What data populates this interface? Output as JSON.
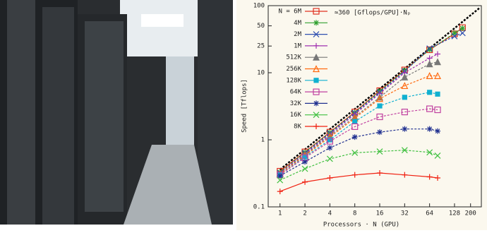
{
  "chart_data": {
    "type": "line",
    "log_x": true,
    "log_y": true,
    "x_label": "Processors · N (GPU)",
    "y_label": "Speed [Tflops]",
    "annotation": "≈360 [Gflops/GPU]·Nₚ",
    "xlim": [
      0.72,
      270
    ],
    "ylim": [
      0.1,
      100
    ],
    "xticks": [
      1,
      2,
      4,
      8,
      16,
      32,
      64,
      128,
      200
    ],
    "yticks": [
      0.1,
      1,
      10,
      25,
      50,
      100
    ],
    "reference": {
      "x": [
        1,
        256
      ],
      "values": [
        0.36,
        92
      ]
    },
    "series": [
      {
        "name": "N = 6M",
        "color": "#e03020",
        "marker": "square",
        "x": [
          1,
          2,
          4,
          8,
          16,
          32,
          64,
          128,
          160
        ],
        "values": [
          0.34,
          0.66,
          1.3,
          2.6,
          5.4,
          11,
          22,
          38,
          47
        ]
      },
      {
        "name": "4M",
        "color": "#30a030",
        "marker": "star",
        "x": [
          1,
          2,
          4,
          8,
          16,
          32,
          64,
          128,
          160
        ],
        "values": [
          0.33,
          0.65,
          1.28,
          2.55,
          5.3,
          10.8,
          22,
          39,
          46
        ]
      },
      {
        "name": "2M",
        "color": "#3050b0",
        "marker": "x",
        "x": [
          1,
          2,
          4,
          8,
          16,
          32,
          64,
          128,
          160
        ],
        "values": [
          0.32,
          0.63,
          1.25,
          2.5,
          5.1,
          10.5,
          23,
          35,
          39
        ]
      },
      {
        "name": "1M",
        "color": "#a030b0",
        "marker": "plus",
        "x": [
          1,
          2,
          4,
          8,
          16,
          32,
          64,
          80
        ],
        "values": [
          0.32,
          0.62,
          1.2,
          2.4,
          4.9,
          10,
          16.5,
          19
        ]
      },
      {
        "name": "512K",
        "color": "#777777",
        "marker": "triangle",
        "x": [
          1,
          2,
          4,
          8,
          16,
          32,
          64,
          80
        ],
        "values": [
          0.31,
          0.6,
          1.15,
          2.2,
          4.3,
          8.6,
          13.5,
          14.5
        ]
      },
      {
        "name": "256K",
        "color": "#ff6a10",
        "marker": "triangle-open",
        "x": [
          1,
          2,
          4,
          8,
          16,
          32,
          64,
          80
        ],
        "values": [
          0.31,
          0.58,
          1.1,
          2.1,
          4.1,
          6.4,
          9,
          9
        ]
      },
      {
        "name": "128K",
        "color": "#10b0d0",
        "marker": "square-filled",
        "x": [
          1,
          2,
          4,
          8,
          16,
          32,
          64,
          80
        ],
        "values": [
          0.3,
          0.56,
          1,
          1.87,
          3.2,
          4.3,
          5.1,
          4.8
        ]
      },
      {
        "name": "64K",
        "color": "#c040a0",
        "marker": "square",
        "x": [
          1,
          2,
          4,
          8,
          16,
          32,
          64,
          80
        ],
        "values": [
          0.3,
          0.54,
          0.95,
          1.57,
          2.2,
          2.6,
          2.9,
          2.8
        ]
      },
      {
        "name": "32K",
        "color": "#203090",
        "marker": "star",
        "x": [
          1,
          2,
          4,
          8,
          16,
          32,
          64,
          80
        ],
        "values": [
          0.29,
          0.47,
          0.76,
          1.1,
          1.3,
          1.45,
          1.45,
          1.35
        ]
      },
      {
        "name": "16K",
        "color": "#40c040",
        "marker": "x",
        "x": [
          1,
          2,
          4,
          8,
          16,
          32,
          64,
          80
        ],
        "values": [
          0.25,
          0.37,
          0.52,
          0.64,
          0.67,
          0.7,
          0.65,
          0.58
        ]
      },
      {
        "name": "8K",
        "color": "#f02010",
        "marker": "plus",
        "x": [
          1,
          2,
          4,
          8,
          16,
          32,
          64,
          80
        ],
        "values": [
          0.17,
          0.235,
          0.27,
          0.3,
          0.32,
          0.3,
          0.28,
          0.27
        ]
      }
    ]
  }
}
